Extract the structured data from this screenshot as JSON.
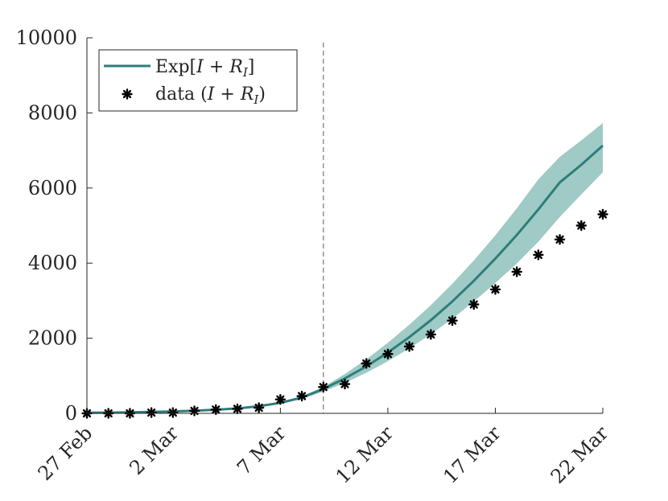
{
  "chart_data": {
    "type": "line",
    "title": "",
    "xlabel": "",
    "ylabel": "",
    "ylim": [
      0,
      10000
    ],
    "xlim": [
      0,
      24
    ],
    "x_tick_values": [
      0,
      4,
      9,
      14,
      19,
      24
    ],
    "x_tick_labels": [
      "27 Feb",
      "2 Mar",
      "7 Mar",
      "12 Mar",
      "17 Mar",
      "22 Mar"
    ],
    "y_tick_values": [
      0,
      2000,
      4000,
      6000,
      8000,
      10000
    ],
    "y_tick_labels": [
      "0",
      "2000",
      "4000",
      "6000",
      "8000",
      "10000"
    ],
    "vertical_marker": {
      "x": 11,
      "style": "dashed",
      "color": "#808080"
    },
    "legend": {
      "position": "top-left",
      "entries": [
        {
          "label": "Exp[",
          "label_math": "I + R",
          "label_sub": "I",
          "label_close": "]",
          "kind": "line"
        },
        {
          "label": "data (",
          "label_math": "I + R",
          "label_sub": "I",
          "label_close": ")",
          "kind": "marker"
        }
      ]
    },
    "series": [
      {
        "name": "Exp[I + R_I]",
        "color": "#2e7d7a",
        "band_color": "#7fb8b3",
        "x": [
          0,
          1,
          2,
          3,
          4,
          5,
          6,
          7,
          8,
          9,
          10,
          11,
          12,
          13,
          14,
          15,
          16,
          17,
          18,
          19,
          20,
          21,
          22,
          23,
          24
        ],
        "mean": [
          15,
          20,
          28,
          38,
          52,
          70,
          95,
          130,
          190,
          280,
          420,
          650,
          930,
          1250,
          1620,
          2030,
          2480,
          2980,
          3530,
          4120,
          4750,
          5430,
          6150,
          6620,
          7130
        ],
        "lower": [
          15,
          19,
          26,
          35,
          48,
          64,
          87,
          118,
          172,
          255,
          385,
          580,
          810,
          1080,
          1390,
          1730,
          2110,
          2520,
          2980,
          3470,
          3990,
          4570,
          5230,
          5830,
          6420
        ],
        "upper": [
          15,
          21,
          30,
          41,
          56,
          76,
          103,
          142,
          208,
          305,
          455,
          700,
          1050,
          1440,
          1880,
          2360,
          2880,
          3450,
          4070,
          4740,
          5460,
          6230,
          6830,
          7270,
          7730
        ]
      },
      {
        "name": "data (I + R_I)",
        "color": "#000000",
        "x": [
          0,
          1,
          2,
          3,
          4,
          5,
          6,
          7,
          8,
          9,
          10,
          11,
          12,
          13,
          14,
          15,
          16,
          17,
          18,
          19,
          20,
          21,
          22,
          23,
          24
        ],
        "values": [
          0,
          0,
          0,
          20,
          20,
          65,
          100,
          120,
          150,
          370,
          460,
          700,
          780,
          1330,
          1580,
          1780,
          2100,
          2470,
          2900,
          3300,
          3770,
          4220,
          4630,
          5000,
          5300
        ]
      }
    ]
  }
}
